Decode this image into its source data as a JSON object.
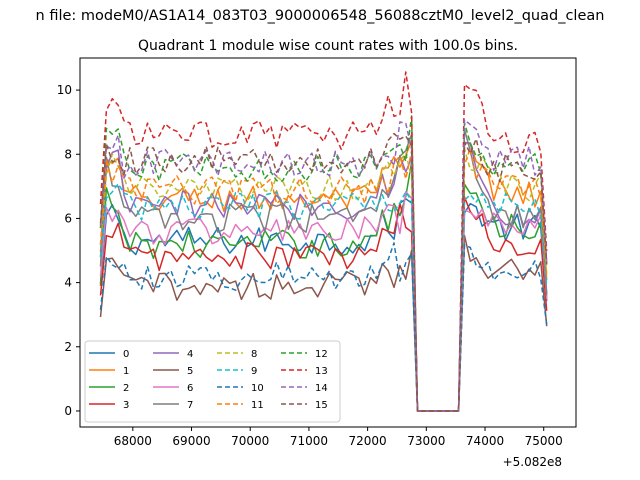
{
  "chart_data": {
    "type": "line",
    "suptitle": "n file: modeM0/AS1A14_083T03_9000006548_56088cztM0_level2_quad_clean",
    "title": "Quadrant 1 module wise count rates with 100.0s bins.",
    "xlabel": "",
    "ylabel": "",
    "x_offset_label": "+5.082e8",
    "xlim": [
      67100,
      75550
    ],
    "ylim": [
      -0.5,
      11.0
    ],
    "xticks": [
      68000,
      69000,
      70000,
      71000,
      72000,
      73000,
      74000,
      75000
    ],
    "xtick_labels": [
      "68000",
      "69000",
      "70000",
      "71000",
      "72000",
      "73000",
      "74000",
      "75000"
    ],
    "yticks": [
      0,
      2,
      4,
      6,
      8,
      10
    ],
    "ytick_labels": [
      "0",
      "2",
      "4",
      "6",
      "8",
      "10"
    ],
    "x_range": [
      67450,
      75050
    ],
    "bin_seconds": 100.0,
    "gap": {
      "start": 72850,
      "end": 73550,
      "value": 0
    },
    "legend": {
      "placement": "lower-left",
      "columns": 4
    },
    "series": [
      {
        "name": "0",
        "color": "#1f77b4",
        "dash": false,
        "level": 5.3,
        "peak": 6.6,
        "post": 5.7
      },
      {
        "name": "1",
        "color": "#ff7f0e",
        "dash": false,
        "level": 6.6,
        "peak": 8.3,
        "post": 6.8
      },
      {
        "name": "2",
        "color": "#2ca02c",
        "dash": false,
        "level": 5.2,
        "peak": 7.4,
        "post": 5.8
      },
      {
        "name": "3",
        "color": "#d62728",
        "dash": false,
        "level": 4.8,
        "peak": 6.5,
        "post": 5.2
      },
      {
        "name": "4",
        "color": "#9467bd",
        "dash": false,
        "level": 6.4,
        "peak": 8.6,
        "post": 6.1
      },
      {
        "name": "5",
        "color": "#8c564b",
        "dash": false,
        "level": 3.9,
        "peak": 5.2,
        "post": 4.4
      },
      {
        "name": "6",
        "color": "#e377c2",
        "dash": false,
        "level": 5.6,
        "peak": 6.4,
        "post": 5.8
      },
      {
        "name": "7",
        "color": "#7f7f7f",
        "dash": false,
        "level": 6.0,
        "peak": 8.4,
        "post": 6.0
      },
      {
        "name": "8",
        "color": "#bcbd22",
        "dash": true,
        "level": 6.9,
        "peak": 8.2,
        "post": 7.0
      },
      {
        "name": "9",
        "color": "#17becf",
        "dash": true,
        "level": 6.4,
        "peak": 7.0,
        "post": 6.5
      },
      {
        "name": "10",
        "color": "#1f77b4",
        "dash": true,
        "level": 4.2,
        "peak": 5.1,
        "post": 4.5
      },
      {
        "name": "11",
        "color": "#ff7f0e",
        "dash": true,
        "level": 6.9,
        "peak": 8.0,
        "post": 7.0
      },
      {
        "name": "12",
        "color": "#2ca02c",
        "dash": true,
        "level": 7.6,
        "peak": 8.8,
        "post": 7.7
      },
      {
        "name": "13",
        "color": "#d62728",
        "dash": true,
        "level": 8.6,
        "peak": 10.4,
        "post": 8.3
      },
      {
        "name": "14",
        "color": "#9467bd",
        "dash": true,
        "level": 7.7,
        "peak": 8.8,
        "post": 7.8
      },
      {
        "name": "15",
        "color": "#8c564b",
        "dash": true,
        "level": 7.8,
        "peak": 8.5,
        "post": 7.6
      }
    ]
  }
}
